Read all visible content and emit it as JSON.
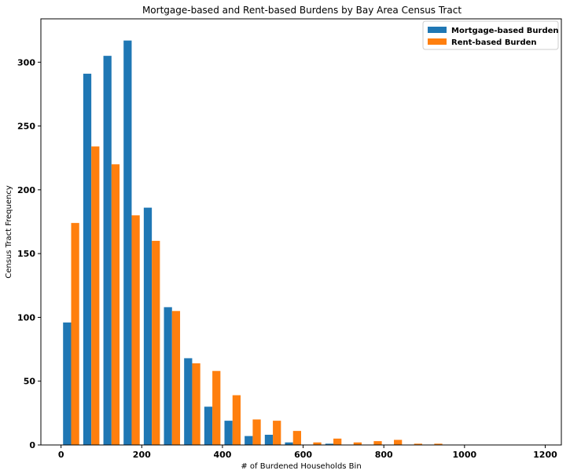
{
  "chart_data": {
    "type": "bar",
    "title": "Mortgage-based and Rent-based Burdens by Bay Area Census Tract",
    "xlabel": "# of Burdened Households Bin",
    "ylabel": "Census Tract Frequency",
    "xlim": [
      -50,
      1240
    ],
    "ylim": [
      0,
      334
    ],
    "x_ticks": [
      "0",
      "200",
      "400",
      "600",
      "800",
      "1000",
      "1200"
    ],
    "y_ticks": [
      "0",
      "50",
      "100",
      "150",
      "200",
      "250",
      "300"
    ],
    "bin_width": 50,
    "bin_starts": [
      0,
      50,
      100,
      150,
      200,
      250,
      300,
      350,
      400,
      450,
      500,
      550,
      600,
      650,
      700,
      750,
      800,
      850,
      900
    ],
    "legend_position": "top-right",
    "grid": false,
    "series": [
      {
        "name": "Mortgage-based Burden",
        "color": "#1f77b4",
        "values": [
          96,
          291,
          305,
          317,
          186,
          108,
          68,
          30,
          19,
          7,
          8,
          2,
          0,
          1,
          0,
          0,
          0,
          0,
          0
        ]
      },
      {
        "name": "Rent-based Burden",
        "color": "#ff7f0e",
        "values": [
          174,
          234,
          220,
          180,
          160,
          105,
          64,
          58,
          39,
          20,
          19,
          11,
          2,
          5,
          2,
          3,
          4,
          1,
          1
        ]
      }
    ]
  }
}
